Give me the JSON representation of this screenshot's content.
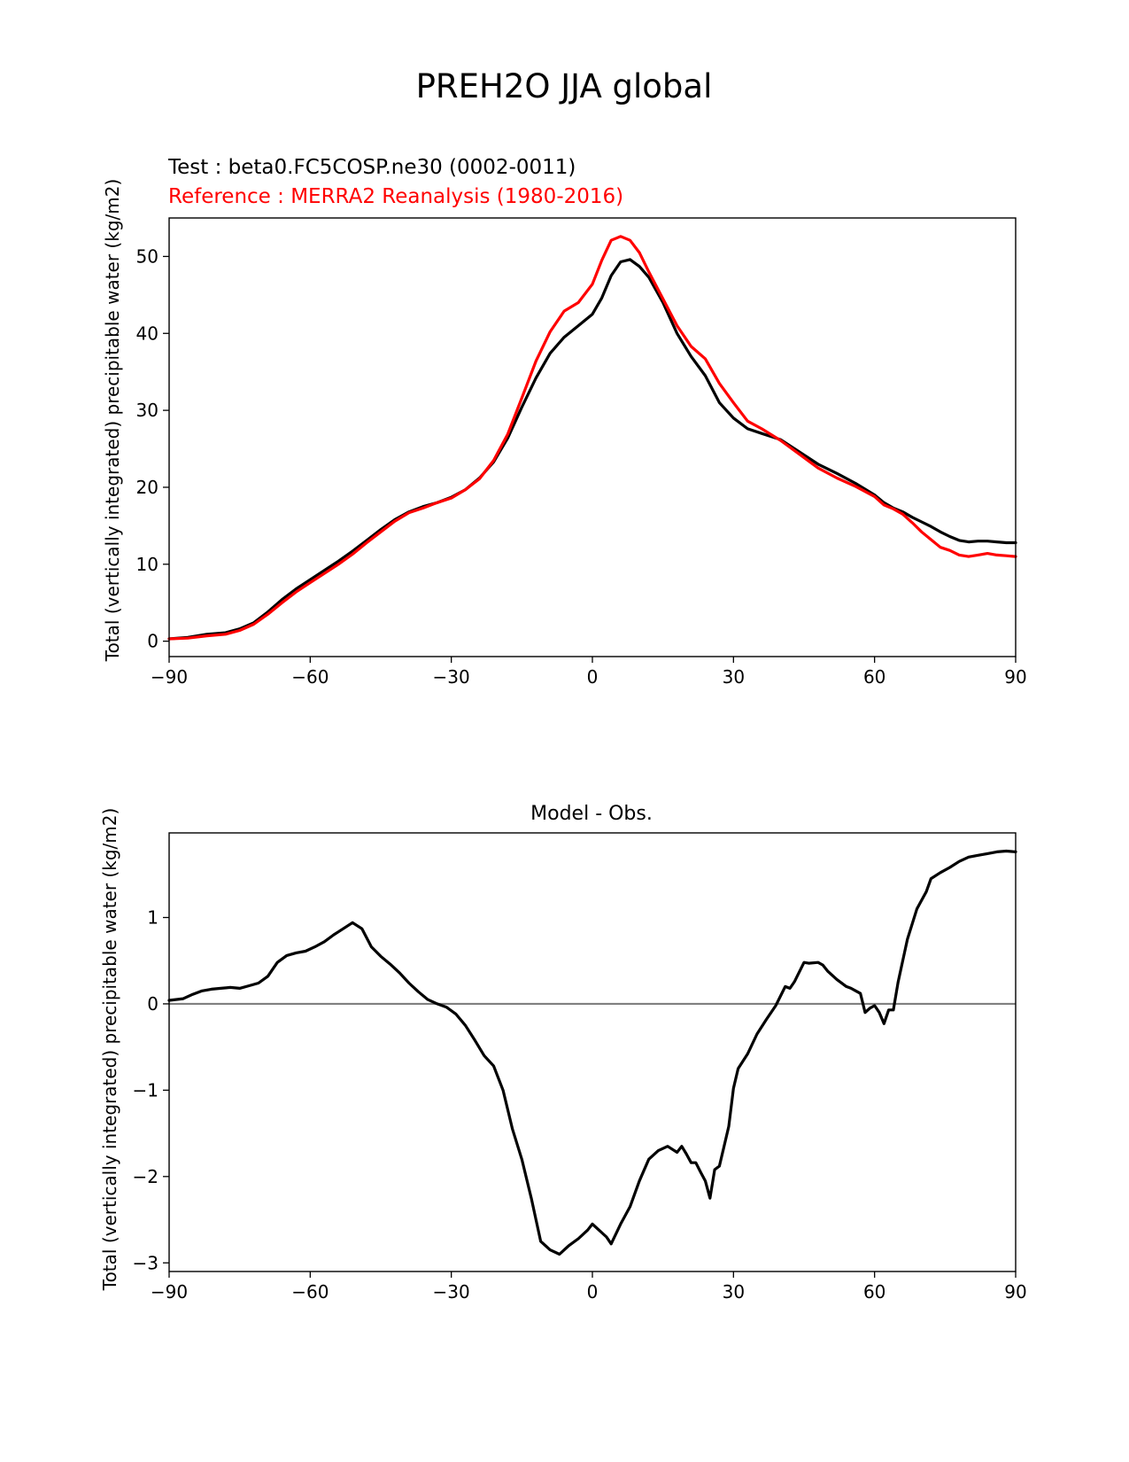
{
  "page": {
    "suptitle": "PREH2O JJA global"
  },
  "chart_data": [
    {
      "type": "line",
      "subtitle_test": "Test : beta0.FC5COSP.ne30 (0002-0011)",
      "subtitle_ref": "Reference : MERRA2 Reanalysis (1980-2016)",
      "title": "",
      "xlabel": "",
      "ylabel": "Total (vertically integrated) precipitable water (kg/m2)",
      "xlim": [
        -90,
        90
      ],
      "ylim": [
        -2,
        55
      ],
      "xticks": [
        -90,
        -60,
        -30,
        0,
        30,
        60,
        90
      ],
      "xtick_labels": [
        "−90",
        "−60",
        "−30",
        "0",
        "30",
        "60",
        "90"
      ],
      "yticks": [
        0,
        10,
        20,
        30,
        40,
        50
      ],
      "ytick_labels": [
        "0",
        "10",
        "20",
        "30",
        "40",
        "50"
      ],
      "series": [
        {
          "name": "Test",
          "color": "#000000",
          "x": [
            -90,
            -86,
            -82,
            -78,
            -75,
            -72,
            -69,
            -66,
            -63,
            -60,
            -57,
            -54,
            -51,
            -48,
            -45,
            -42,
            -39,
            -36,
            -33,
            -30,
            -27,
            -24,
            -21,
            -18,
            -15,
            -12,
            -9,
            -6,
            -3,
            0,
            2,
            4,
            6,
            8,
            10,
            12,
            15,
            18,
            21,
            24,
            27,
            30,
            33,
            36,
            40,
            44,
            48,
            52,
            56,
            60,
            62,
            64,
            66,
            68,
            70,
            72,
            74,
            76,
            78,
            80,
            82,
            84,
            86,
            88,
            90
          ],
          "y": [
            0.3,
            0.5,
            0.9,
            1.1,
            1.6,
            2.4,
            3.8,
            5.4,
            6.8,
            8.0,
            9.2,
            10.4,
            11.7,
            13.1,
            14.5,
            15.8,
            16.8,
            17.5,
            18.0,
            18.7,
            19.7,
            21.2,
            23.3,
            26.4,
            30.4,
            34.2,
            37.4,
            39.5,
            41.0,
            42.5,
            44.6,
            47.5,
            49.3,
            49.6,
            48.7,
            47.3,
            44.0,
            40.0,
            37.0,
            34.5,
            31.0,
            29.0,
            27.6,
            27.0,
            26.2,
            24.6,
            23.0,
            21.8,
            20.5,
            19.0,
            18.0,
            17.3,
            16.8,
            16.1,
            15.5,
            14.9,
            14.2,
            13.6,
            13.1,
            12.9,
            13.0,
            13.0,
            12.9,
            12.8,
            12.8
          ]
        },
        {
          "name": "Reference",
          "color": "#ff0000",
          "x": [
            -90,
            -86,
            -82,
            -78,
            -75,
            -72,
            -69,
            -66,
            -63,
            -60,
            -57,
            -54,
            -51,
            -48,
            -45,
            -42,
            -39,
            -36,
            -33,
            -30,
            -27,
            -24,
            -21,
            -18,
            -15,
            -12,
            -9,
            -6,
            -3,
            0,
            2,
            4,
            6,
            8,
            10,
            12,
            15,
            18,
            21,
            24,
            27,
            30,
            33,
            36,
            40,
            44,
            48,
            52,
            56,
            60,
            62,
            64,
            66,
            68,
            70,
            72,
            74,
            76,
            78,
            80,
            82,
            84,
            86,
            88,
            90
          ],
          "y": [
            0.3,
            0.4,
            0.7,
            0.9,
            1.4,
            2.2,
            3.5,
            5.0,
            6.4,
            7.6,
            8.8,
            10.0,
            11.3,
            12.8,
            14.2,
            15.6,
            16.7,
            17.3,
            18.0,
            18.6,
            19.7,
            21.1,
            23.5,
            26.9,
            31.6,
            36.4,
            40.2,
            42.9,
            44.0,
            46.4,
            49.5,
            52.1,
            52.6,
            52.1,
            50.5,
            48.0,
            44.5,
            41.0,
            38.3,
            36.7,
            33.5,
            31.0,
            28.6,
            27.6,
            26.1,
            24.3,
            22.5,
            21.2,
            20.1,
            18.8,
            17.7,
            17.2,
            16.5,
            15.4,
            14.2,
            13.2,
            12.2,
            11.8,
            11.2,
            11.0,
            11.2,
            11.4,
            11.2,
            11.1,
            11.0
          ]
        }
      ]
    },
    {
      "type": "line",
      "title": "Model - Obs.",
      "xlabel": "",
      "ylabel": "Total (vertically integrated) precipitable water (kg/m2)",
      "xlim": [
        -90,
        90
      ],
      "ylim": [
        -3.1,
        1.98
      ],
      "xticks": [
        -90,
        -60,
        -30,
        0,
        30,
        60,
        90
      ],
      "xtick_labels": [
        "−90",
        "−60",
        "−30",
        "0",
        "30",
        "60",
        "90"
      ],
      "yticks": [
        -3,
        -2,
        -1,
        0,
        1
      ],
      "ytick_labels": [
        "−3",
        "−2",
        "−1",
        "0",
        "1"
      ],
      "zero_line_color": "#808080",
      "series": [
        {
          "name": "Model - Obs.",
          "color": "#000000",
          "x": [
            -90,
            -87,
            -85,
            -83,
            -81,
            -79,
            -77,
            -75,
            -73,
            -71,
            -69,
            -67,
            -65,
            -63,
            -61,
            -59,
            -57,
            -55,
            -53,
            -51,
            -49,
            -47,
            -45,
            -43,
            -41,
            -39,
            -37,
            -35,
            -33,
            -31,
            -29,
            -27,
            -25,
            -23,
            -21,
            -19,
            -17,
            -15,
            -13,
            -11,
            -9,
            -7,
            -5,
            -3,
            -1,
            0,
            1,
            3,
            4,
            6,
            8,
            10,
            12,
            14,
            16,
            18,
            19,
            20,
            21,
            22,
            23,
            24,
            25,
            26,
            27,
            28,
            29,
            30,
            31,
            33,
            35,
            37,
            39,
            41,
            42,
            43,
            45,
            46,
            48,
            49,
            50,
            52,
            54,
            55,
            56,
            57,
            58,
            59,
            60,
            61,
            62,
            63,
            64,
            65,
            66,
            67,
            69,
            71,
            72,
            74,
            76,
            78,
            80,
            82,
            84,
            86,
            88,
            90
          ],
          "y": [
            0.04,
            0.06,
            0.11,
            0.15,
            0.17,
            0.18,
            0.19,
            0.18,
            0.21,
            0.24,
            0.32,
            0.48,
            0.56,
            0.59,
            0.61,
            0.66,
            0.72,
            0.8,
            0.87,
            0.94,
            0.87,
            0.66,
            0.55,
            0.46,
            0.36,
            0.24,
            0.14,
            0.05,
            0.0,
            -0.04,
            -0.12,
            -0.25,
            -0.42,
            -0.6,
            -0.72,
            -1.0,
            -1.45,
            -1.8,
            -2.25,
            -2.75,
            -2.85,
            -2.9,
            -2.8,
            -2.72,
            -2.62,
            -2.55,
            -2.6,
            -2.7,
            -2.78,
            -2.55,
            -2.35,
            -2.05,
            -1.8,
            -1.7,
            -1.65,
            -1.72,
            -1.65,
            -1.74,
            -1.84,
            -1.84,
            -1.95,
            -2.05,
            -2.25,
            -1.92,
            -1.88,
            -1.65,
            -1.42,
            -0.98,
            -0.75,
            -0.58,
            -0.35,
            -0.18,
            -0.02,
            0.2,
            0.18,
            0.26,
            0.48,
            0.47,
            0.48,
            0.45,
            0.38,
            0.28,
            0.2,
            0.18,
            0.15,
            0.12,
            -0.1,
            -0.05,
            -0.02,
            -0.1,
            -0.23,
            -0.07,
            -0.07,
            0.25,
            0.5,
            0.75,
            1.1,
            1.3,
            1.45,
            1.52,
            1.58,
            1.65,
            1.7,
            1.72,
            1.74,
            1.76,
            1.77,
            1.76
          ]
        }
      ]
    }
  ]
}
